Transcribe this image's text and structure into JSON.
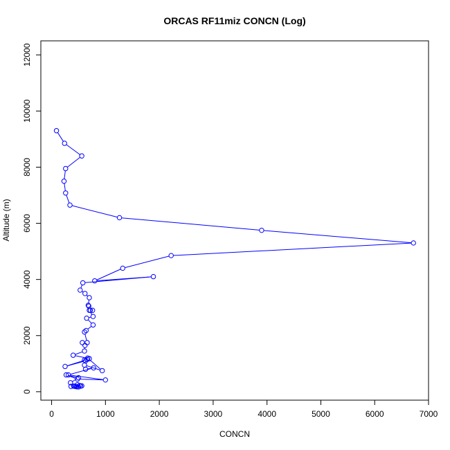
{
  "chart_data": {
    "type": "line",
    "title": "ORCAS RF11miz CONCN (Log)",
    "xlabel": "CONCN",
    "ylabel": "Altitude (m)",
    "xlim": [
      -200,
      7000
    ],
    "ylim": [
      -300,
      12500
    ],
    "x_ticks": [
      0,
      1000,
      2000,
      3000,
      4000,
      5000,
      6000,
      7000
    ],
    "y_ticks": [
      0,
      2000,
      4000,
      6000,
      8000,
      10000,
      12000
    ],
    "grid": false,
    "legend": "none",
    "line_color": "#0000ff",
    "marker": "open-circle",
    "series": [
      {
        "x": [
          90,
          240,
          560,
          260,
          230,
          260,
          340,
          1260,
          3900,
          6720,
          2220,
          1320,
          800,
          1890,
          580,
          530,
          620,
          700,
          680,
          690,
          760,
          720,
          700,
          770,
          650,
          770,
          640,
          610,
          660,
          570,
          620,
          610,
          400,
          700,
          610,
          660,
          250,
          630,
          670,
          940,
          610,
          630,
          780,
          310,
          1000,
          480,
          270,
          500,
          350,
          420,
          540,
          480,
          460,
          520,
          440,
          560,
          500,
          410,
          470,
          360
        ],
        "y": [
          9300,
          8850,
          8400,
          7950,
          7500,
          7080,
          6650,
          6200,
          5750,
          5300,
          4850,
          4400,
          3950,
          4100,
          3880,
          3620,
          3500,
          3350,
          3080,
          3050,
          2900,
          2900,
          2900,
          2680,
          2620,
          2380,
          2180,
          2130,
          1750,
          1750,
          1650,
          1450,
          1300,
          1180,
          1130,
          1150,
          900,
          1100,
          1200,
          750,
          950,
          800,
          850,
          600,
          420,
          450,
          600,
          500,
          320,
          200,
          200,
          250,
          180,
          220,
          190,
          210,
          170,
          200,
          180,
          190
        ]
      }
    ]
  }
}
